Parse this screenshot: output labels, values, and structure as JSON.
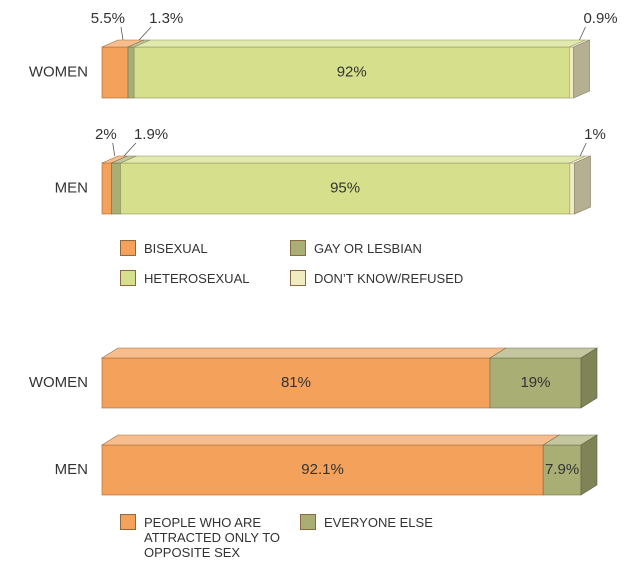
{
  "chart_data": [
    {
      "type": "bar",
      "categories": [
        "WOMEN",
        "MEN"
      ],
      "series": [
        {
          "name": "BISEXUAL",
          "color": "#f4a15c",
          "values": [
            5.5,
            2
          ],
          "value_labels": [
            "5.5%",
            "2%"
          ]
        },
        {
          "name": "GAY OR LESBIAN",
          "color": "#a9ae74",
          "values": [
            1.3,
            1.9
          ],
          "value_labels": [
            "1.3%",
            "1.9%"
          ]
        },
        {
          "name": "HETEROSEXUAL",
          "color": "#d6e08c",
          "values": [
            92,
            95
          ],
          "value_labels": [
            "92%",
            "95%"
          ]
        },
        {
          "name": "DON’T KNOW/REFUSED",
          "color": "#f1ebc2",
          "values": [
            0.9,
            1
          ],
          "value_labels": [
            "0.9%",
            "1%"
          ]
        }
      ]
    },
    {
      "type": "bar",
      "categories": [
        "WOMEN",
        "MEN"
      ],
      "series": [
        {
          "name": "PEOPLE WHO ARE ATTRACTED ONLY TO OPPOSITE SEX",
          "color": "#f4a15c",
          "values": [
            81,
            92.1
          ],
          "value_labels": [
            "81%",
            "92.1%"
          ]
        },
        {
          "name": "EVERYONE ELSE",
          "color": "#a9ae74",
          "values": [
            19,
            7.9
          ],
          "value_labels": [
            "19%",
            "7.9%"
          ]
        }
      ]
    }
  ]
}
